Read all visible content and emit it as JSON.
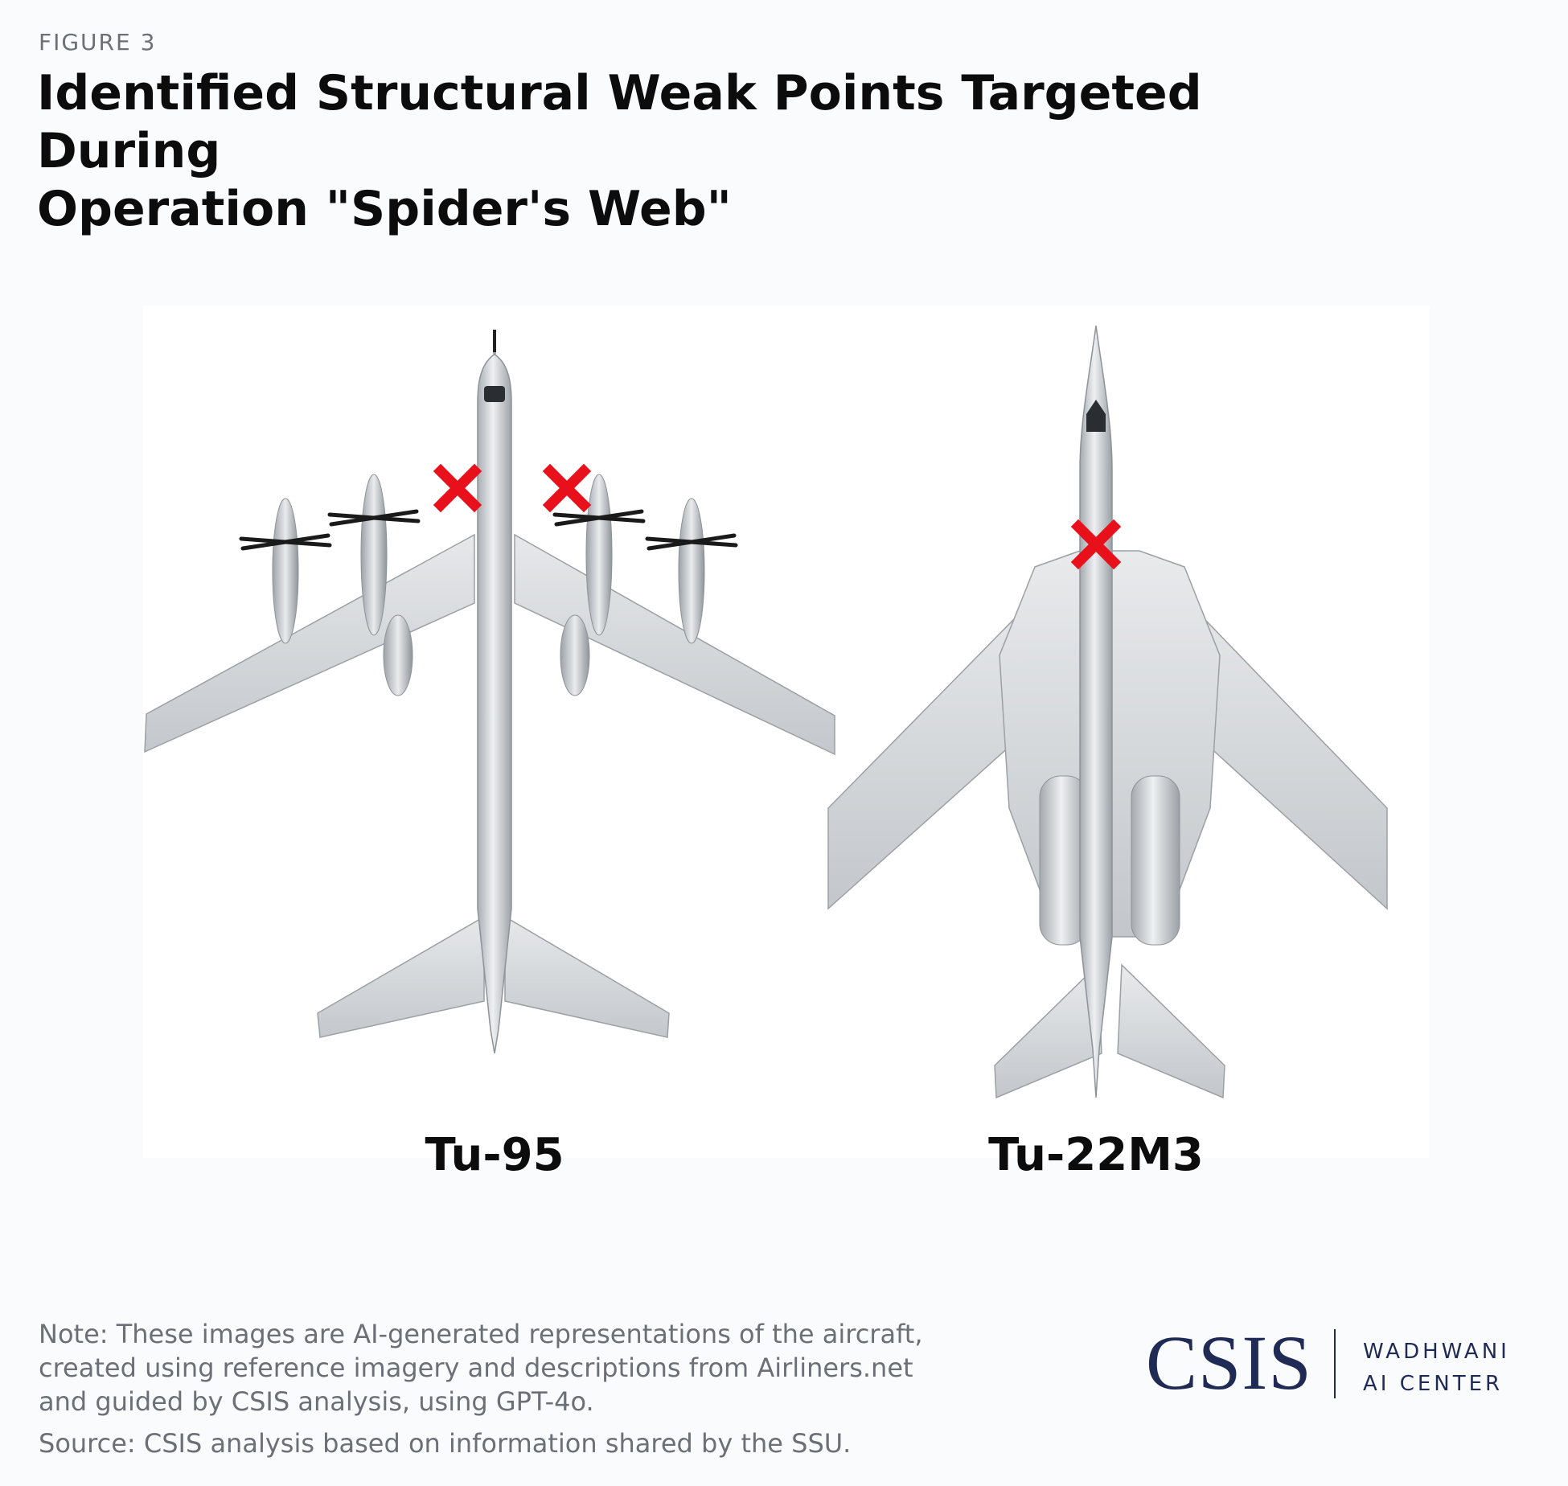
{
  "figure": {
    "label": "FIGURE 3"
  },
  "title": {
    "line1": "Identified Structural Weak Points Targeted During",
    "line2": "Operation \"Spider's Web\""
  },
  "aircraft": [
    {
      "name": "Tu-95",
      "weak_points": 2
    },
    {
      "name": "Tu-22M3",
      "weak_points": 1
    }
  ],
  "colors": {
    "marker": "#e8101a",
    "airframe": "#cfd3d7",
    "brand": "#1f2a55"
  },
  "note": "Note: These images are AI-generated representations of the aircraft, created using reference imagery and descriptions from Airliners.net and guided by CSIS analysis, using GPT-4o.",
  "source": "Source: CSIS analysis based on information shared by the SSU.",
  "logo": {
    "main": "CSIS",
    "sub_line1": "WADHWANI",
    "sub_line2": "AI CENTER"
  }
}
